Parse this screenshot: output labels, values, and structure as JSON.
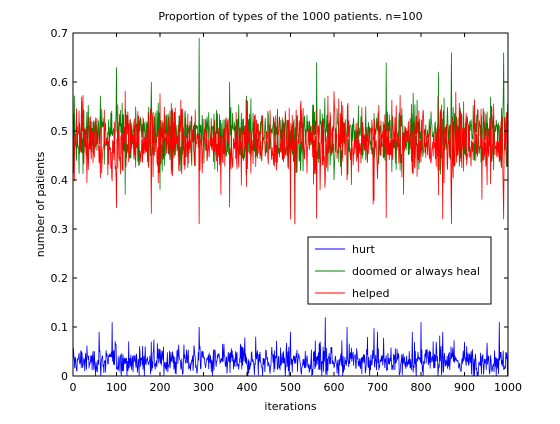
{
  "chart_data": {
    "type": "line",
    "title": "Proportion of types of the 1000 patients. n=100",
    "xlabel": "iterations",
    "ylabel": "number of patients",
    "xlim": [
      0,
      1000
    ],
    "ylim": [
      0,
      0.7
    ],
    "xticks": [
      0,
      100,
      200,
      300,
      400,
      500,
      600,
      700,
      800,
      900,
      1000
    ],
    "yticks": [
      0,
      0.1,
      0.2,
      0.3,
      0.4,
      0.5,
      0.6,
      0.7
    ],
    "grid": false,
    "legend_position": "lower-right",
    "series": [
      {
        "name": "hurt",
        "color": "#0000ff",
        "mean": 0.03,
        "approx_range": [
          0.0,
          0.12
        ],
        "sample_points": [
          [
            0,
            0.04
          ],
          [
            20,
            0.05
          ],
          [
            60,
            0.09
          ],
          [
            90,
            0.11
          ],
          [
            180,
            0.07
          ],
          [
            290,
            0.1
          ],
          [
            420,
            0.08
          ],
          [
            500,
            0.09
          ],
          [
            580,
            0.12
          ],
          [
            630,
            0.1
          ],
          [
            700,
            0.09
          ],
          [
            780,
            0.09
          ],
          [
            800,
            0.11
          ],
          [
            850,
            0.09
          ],
          [
            900,
            0.07
          ],
          [
            980,
            0.11
          ],
          [
            1000,
            0.03
          ]
        ]
      },
      {
        "name": "doomed or always heal",
        "color": "#008000",
        "mean": 0.49,
        "approx_range": [
          0.31,
          0.69
        ],
        "sample_points": [
          [
            0,
            0.44
          ],
          [
            20,
            0.56
          ],
          [
            100,
            0.63
          ],
          [
            120,
            0.37
          ],
          [
            180,
            0.6
          ],
          [
            200,
            0.38
          ],
          [
            290,
            0.69
          ],
          [
            360,
            0.6
          ],
          [
            510,
            0.31
          ],
          [
            560,
            0.64
          ],
          [
            600,
            0.4
          ],
          [
            720,
            0.64
          ],
          [
            840,
            0.62
          ],
          [
            870,
            0.66
          ],
          [
            960,
            0.57
          ],
          [
            990,
            0.66
          ],
          [
            1000,
            0.6
          ]
        ]
      },
      {
        "name": "helped",
        "color": "#ff0000",
        "mean": 0.48,
        "approx_range": [
          0.31,
          0.6
        ],
        "sample_points": [
          [
            0,
            0.5
          ],
          [
            20,
            0.57
          ],
          [
            40,
            0.53
          ],
          [
            80,
            0.41
          ],
          [
            290,
            0.31
          ],
          [
            340,
            0.37
          ],
          [
            500,
            0.32
          ],
          [
            510,
            0.31
          ],
          [
            640,
            0.39
          ],
          [
            690,
            0.35
          ],
          [
            760,
            0.37
          ],
          [
            850,
            0.32
          ],
          [
            880,
            0.58
          ],
          [
            940,
            0.36
          ],
          [
            990,
            0.32
          ],
          [
            1000,
            0.44
          ]
        ]
      }
    ]
  }
}
